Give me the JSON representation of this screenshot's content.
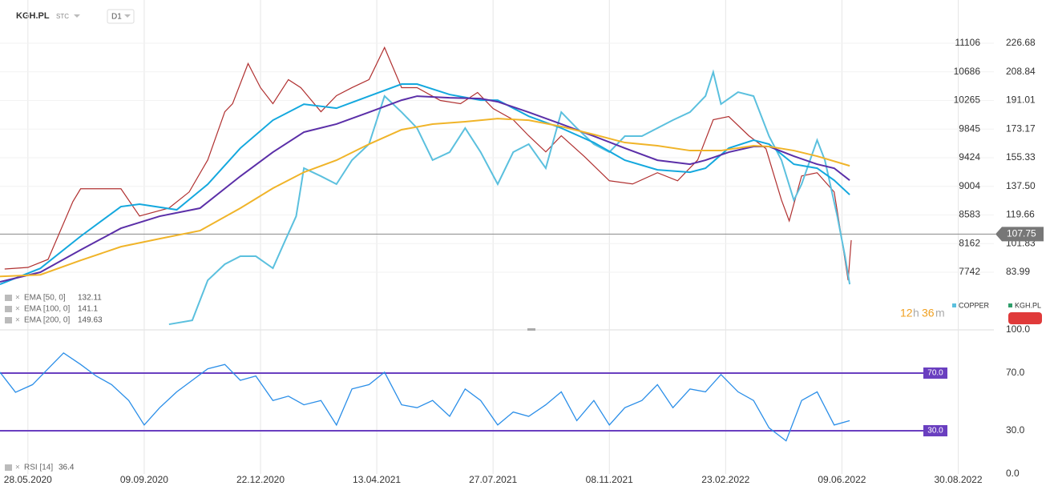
{
  "header": {
    "symbol": "KGH.PL",
    "market": "STC",
    "interval": "D1"
  },
  "timer": {
    "hours": "12",
    "h": "h",
    "minutes": "36",
    "m": "m"
  },
  "chart_data": [
    {
      "type": "line",
      "xlim": [
        -18,
        623
      ],
      "xticks": [
        {
          "value": 0,
          "label": "28.05.2020"
        },
        {
          "value": 75,
          "label": "09.09.2020"
        },
        {
          "value": 150,
          "label": "22.12.2020"
        },
        {
          "value": 225,
          "label": "13.04.2021"
        },
        {
          "value": 300,
          "label": "27.07.2021"
        },
        {
          "value": 375,
          "label": "08.11.2021"
        },
        {
          "value": 450,
          "label": "23.02.2022"
        },
        {
          "value": 525,
          "label": "09.06.2022"
        },
        {
          "value": 600,
          "label": "30.08.2022"
        }
      ],
      "ylim": [
        49.1,
        253.6
      ],
      "yticks": [
        226.68,
        208.84,
        191.01,
        173.17,
        155.33,
        {
          "value": 137.5,
          "label": "137.50"
        },
        119.66,
        101.83,
        83.99
      ],
      "y2lim": [
        6919,
        11741
      ],
      "y2ticks": [
        11106,
        10686,
        10265,
        9845,
        9424,
        9004,
        8583,
        8162,
        7742
      ],
      "last_price": {
        "value": 107.75,
        "label": "107.75"
      },
      "legend": [
        "COPPER",
        "KGH.PL"
      ],
      "series": [
        {
          "name": "KGH.PL",
          "color": "#b03030",
          "x": [
            -15,
            0,
            13,
            29,
            34,
            60,
            72,
            91,
            104,
            116,
            127,
            132,
            142,
            150,
            158,
            168,
            176,
            189,
            199,
            209,
            220,
            230,
            241,
            251,
            266,
            279,
            290,
            300,
            313,
            323,
            334,
            344,
            359,
            375,
            390,
            406,
            419,
            432,
            442,
            452,
            465,
            476,
            486,
            491,
            499,
            509,
            520,
            525,
            529,
            531
          ],
          "values": [
            86,
            87,
            92,
            128,
            136,
            136,
            119,
            124,
            134,
            154,
            184,
            189,
            214,
            199,
            189,
            204,
            199,
            184,
            194,
            199,
            204,
            224,
            199,
            199,
            191,
            189,
            196,
            186,
            179,
            169,
            159,
            169,
            156,
            141,
            139,
            146,
            141,
            154,
            179,
            181,
            169,
            161,
            129,
            116,
            144,
            146,
            134,
            104,
            79,
            104
          ]
        },
        {
          "name": "COPPER",
          "color": "#5bc0de",
          "axis": "y2",
          "x": [
            91,
            106,
            116,
            127,
            137,
            147,
            158,
            166,
            173,
            178,
            189,
            199,
            209,
            220,
            230,
            241,
            251,
            261,
            272,
            282,
            292,
            303,
            313,
            323,
            334,
            344,
            354,
            365,
            375,
            385,
            396,
            406,
            416,
            427,
            437,
            442,
            447,
            458,
            468,
            478,
            486,
            494,
            499,
            509,
            514,
            522,
            527,
            530
          ],
          "values": [
            6977,
            7036,
            7624,
            7860,
            7977,
            7977,
            7801,
            8212,
            8565,
            9271,
            9153,
            9036,
            9389,
            9624,
            10330,
            10094,
            9859,
            9389,
            9506,
            9859,
            9506,
            9036,
            9506,
            9624,
            9271,
            10094,
            9859,
            9624,
            9506,
            9741,
            9741,
            9859,
            9977,
            10094,
            10330,
            10682,
            10212,
            10388,
            10330,
            9741,
            9389,
            8800,
            9036,
            9683,
            9389,
            8565,
            7977,
            7565
          ]
        },
        {
          "name": "EMA [50, 0]",
          "legend_value": 132.11,
          "color": "#14a8de",
          "x": [
            -18,
            8,
            34,
            60,
            72,
            96,
            116,
            137,
            158,
            178,
            199,
            220,
            241,
            251,
            272,
            292,
            303,
            323,
            344,
            365,
            385,
            406,
            427,
            437,
            452,
            468,
            478,
            494,
            509,
            520,
            530
          ],
          "values": [
            76.5,
            86.4,
            106.4,
            124.9,
            126.4,
            122.9,
            138.8,
            161.3,
            178.7,
            188.7,
            186.2,
            193.7,
            201.2,
            201.2,
            194.7,
            191.2,
            191.2,
            181.2,
            173.8,
            164.8,
            153.8,
            147.8,
            146.3,
            148.8,
            161.3,
            166.3,
            163.8,
            151.3,
            148.8,
            141.3,
            132.3
          ]
        },
        {
          "name": "EMA [100, 0]",
          "legend_value": 141.1,
          "color": "#5b2fa8",
          "x": [
            -18,
            8,
            34,
            60,
            85,
            111,
            137,
            158,
            178,
            199,
            220,
            241,
            251,
            272,
            292,
            303,
            323,
            344,
            365,
            385,
            406,
            427,
            437,
            452,
            468,
            478,
            494,
            509,
            520,
            530
          ],
          "values": [
            78.0,
            84.0,
            97.9,
            111.4,
            118.9,
            123.9,
            143.8,
            158.8,
            171.3,
            176.3,
            183.7,
            191.2,
            193.7,
            192.7,
            192.2,
            190.2,
            183.7,
            176.3,
            168.8,
            161.3,
            153.8,
            151.3,
            153.8,
            158.8,
            162.3,
            162.3,
            156.3,
            151.3,
            148.8,
            141.3
          ]
        },
        {
          "name": "EMA [200, 0]",
          "legend_value": 149.63,
          "color": "#f0b429",
          "x": [
            -18,
            8,
            34,
            60,
            85,
            111,
            137,
            158,
            178,
            199,
            220,
            241,
            261,
            282,
            303,
            323,
            344,
            365,
            385,
            406,
            427,
            447,
            468,
            478,
            494,
            509,
            530
          ],
          "values": [
            81.4,
            82.4,
            91.4,
            99.9,
            104.9,
            109.9,
            123.9,
            136.3,
            146.3,
            153.8,
            163.8,
            172.8,
            176.3,
            177.8,
            179.7,
            178.7,
            174.8,
            169.8,
            164.8,
            162.8,
            159.8,
            159.8,
            162.8,
            162.3,
            159.8,
            156.3,
            150.3
          ]
        }
      ]
    },
    {
      "type": "line",
      "xlim": [
        -18,
        623
      ],
      "ylim": [
        0,
        100
      ],
      "yticks": [
        {
          "value": 100,
          "label": "100.0"
        },
        {
          "value": 70,
          "label": "70.0"
        },
        {
          "value": 30,
          "label": "30.0"
        },
        {
          "value": 0,
          "label": "0.0"
        }
      ],
      "levels": [
        {
          "value": 70,
          "label": "70.0"
        },
        {
          "value": 30,
          "label": "30.0"
        }
      ],
      "level_color": "#6a3fc0",
      "series": [
        {
          "name": "RSI [14]",
          "legend_value": 36.4,
          "color": "#2a8ee8",
          "x": [
            -18,
            -8,
            3,
            13,
            23,
            34,
            44,
            54,
            65,
            75,
            85,
            96,
            106,
            116,
            127,
            137,
            147,
            158,
            168,
            178,
            189,
            199,
            209,
            220,
            230,
            241,
            251,
            261,
            272,
            282,
            292,
            303,
            313,
            323,
            334,
            344,
            354,
            365,
            375,
            385,
            396,
            406,
            416,
            427,
            437,
            447,
            458,
            468,
            478,
            489,
            499,
            509,
            520,
            530
          ],
          "values": [
            70.6,
            56.7,
            62,
            73,
            84,
            76,
            68,
            62,
            51,
            34,
            46,
            57,
            65,
            73,
            76,
            65,
            68,
            51,
            54,
            48,
            51,
            34,
            59,
            62,
            70.6,
            48,
            46,
            51,
            40,
            59,
            51,
            34,
            43,
            40,
            48,
            57,
            37,
            51,
            34,
            46,
            51,
            62,
            46,
            59,
            57,
            69,
            57,
            51,
            32,
            23,
            51,
            57,
            34,
            37
          ]
        }
      ]
    }
  ]
}
